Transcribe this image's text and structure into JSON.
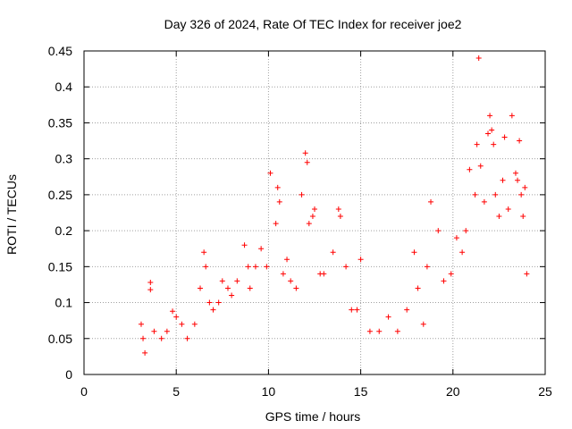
{
  "chart_data": {
    "type": "scatter",
    "title": "Day 326 of 2024, Rate Of TEC Index for receiver joe2",
    "xlabel": "GPS time / hours",
    "ylabel": "ROTI / TECUs",
    "xlim": [
      0,
      25
    ],
    "ylim": [
      0,
      0.45
    ],
    "xticks": [
      0,
      5,
      10,
      15,
      20,
      25
    ],
    "xtick_labels": [
      "0",
      "5",
      "10",
      "15",
      "20",
      "25"
    ],
    "yticks": [
      0,
      0.05,
      0.1,
      0.15,
      0.2,
      0.25,
      0.3,
      0.35,
      0.4,
      0.45
    ],
    "ytick_labels": [
      "0",
      "0.05",
      "0.1",
      "0.15",
      "0.2",
      "0.25",
      "0.3",
      "0.35",
      "0.4",
      "0.45"
    ],
    "grid": true,
    "marker": "+",
    "color": "#ff0000",
    "series": [
      {
        "points": [
          [
            3.1,
            0.07
          ],
          [
            3.2,
            0.05
          ],
          [
            3.3,
            0.03
          ],
          [
            3.6,
            0.128
          ],
          [
            3.6,
            0.118
          ],
          [
            3.8,
            0.06
          ],
          [
            4.2,
            0.05
          ],
          [
            4.5,
            0.06
          ],
          [
            4.8,
            0.088
          ],
          [
            5.0,
            0.08
          ],
          [
            5.3,
            0.07
          ],
          [
            5.6,
            0.05
          ],
          [
            6.0,
            0.07
          ],
          [
            6.3,
            0.12
          ],
          [
            6.5,
            0.17
          ],
          [
            6.6,
            0.15
          ],
          [
            6.8,
            0.1
          ],
          [
            7.0,
            0.09
          ],
          [
            7.3,
            0.1
          ],
          [
            7.5,
            0.13
          ],
          [
            7.8,
            0.12
          ],
          [
            8.0,
            0.11
          ],
          [
            8.3,
            0.13
          ],
          [
            8.7,
            0.18
          ],
          [
            8.9,
            0.15
          ],
          [
            9.0,
            0.12
          ],
          [
            9.3,
            0.15
          ],
          [
            9.6,
            0.175
          ],
          [
            9.9,
            0.15
          ],
          [
            10.1,
            0.28
          ],
          [
            10.4,
            0.21
          ],
          [
            10.5,
            0.26
          ],
          [
            10.6,
            0.24
          ],
          [
            10.8,
            0.14
          ],
          [
            11.0,
            0.16
          ],
          [
            11.2,
            0.13
          ],
          [
            11.5,
            0.12
          ],
          [
            11.8,
            0.25
          ],
          [
            12.0,
            0.308
          ],
          [
            12.1,
            0.295
          ],
          [
            12.2,
            0.21
          ],
          [
            12.4,
            0.22
          ],
          [
            12.5,
            0.23
          ],
          [
            12.8,
            0.14
          ],
          [
            13.0,
            0.14
          ],
          [
            13.5,
            0.17
          ],
          [
            13.8,
            0.23
          ],
          [
            13.9,
            0.22
          ],
          [
            14.2,
            0.15
          ],
          [
            14.5,
            0.09
          ],
          [
            14.8,
            0.09
          ],
          [
            15.0,
            0.16
          ],
          [
            15.5,
            0.06
          ],
          [
            16.0,
            0.06
          ],
          [
            16.5,
            0.08
          ],
          [
            17.0,
            0.06
          ],
          [
            17.5,
            0.09
          ],
          [
            17.9,
            0.17
          ],
          [
            18.1,
            0.12
          ],
          [
            18.4,
            0.07
          ],
          [
            18.6,
            0.15
          ],
          [
            18.8,
            0.24
          ],
          [
            19.2,
            0.2
          ],
          [
            19.5,
            0.13
          ],
          [
            19.9,
            0.14
          ],
          [
            20.2,
            0.19
          ],
          [
            20.5,
            0.17
          ],
          [
            20.7,
            0.2
          ],
          [
            20.9,
            0.285
          ],
          [
            21.2,
            0.25
          ],
          [
            21.3,
            0.32
          ],
          [
            21.4,
            0.44
          ],
          [
            21.5,
            0.29
          ],
          [
            21.7,
            0.24
          ],
          [
            21.9,
            0.335
          ],
          [
            22.0,
            0.36
          ],
          [
            22.1,
            0.34
          ],
          [
            22.2,
            0.32
          ],
          [
            22.3,
            0.25
          ],
          [
            22.5,
            0.22
          ],
          [
            22.7,
            0.27
          ],
          [
            22.8,
            0.33
          ],
          [
            23.0,
            0.23
          ],
          [
            23.2,
            0.36
          ],
          [
            23.4,
            0.28
          ],
          [
            23.5,
            0.27
          ],
          [
            23.6,
            0.325
          ],
          [
            23.7,
            0.25
          ],
          [
            23.8,
            0.22
          ],
          [
            23.9,
            0.26
          ],
          [
            24.0,
            0.14
          ]
        ]
      }
    ]
  }
}
